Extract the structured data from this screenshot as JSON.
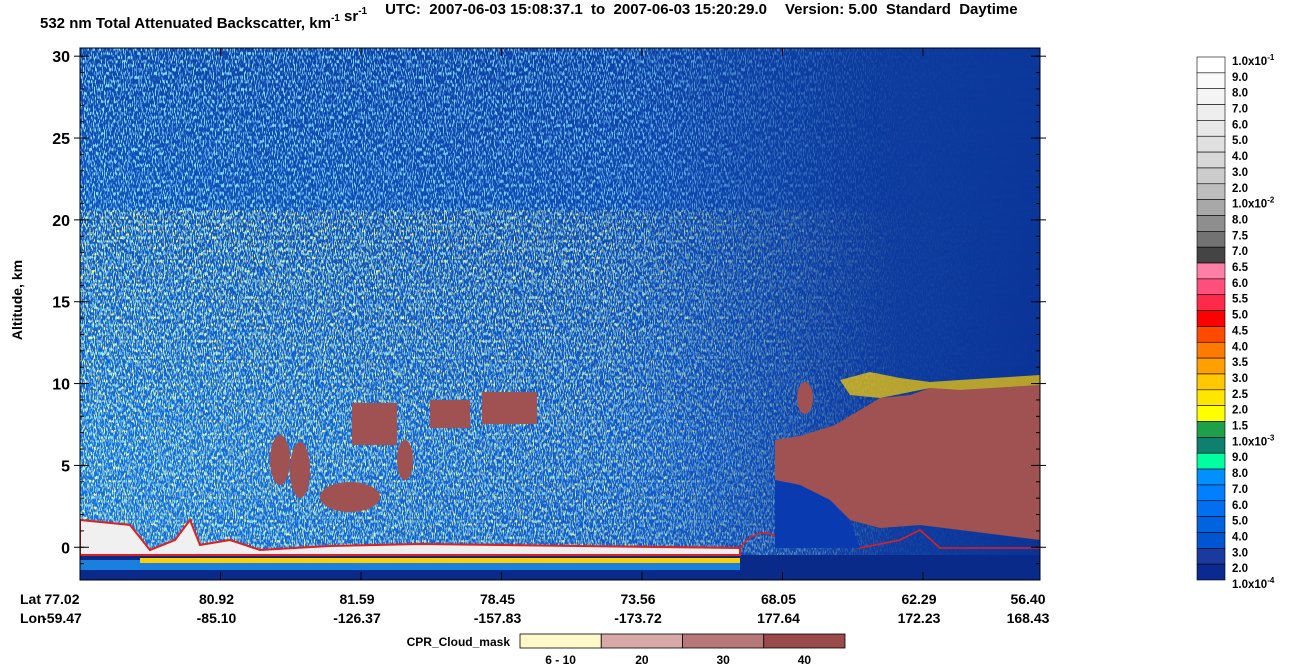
{
  "chart_data": {
    "type": "curtain",
    "title_parts": [
      {
        "text": "532 nm Total Attenuated Backscatter, km"
      },
      {
        "sup": "-1"
      },
      {
        "text": " sr"
      },
      {
        "sup": "-1"
      }
    ],
    "subtitle": "UTC:  2007-06-03 15:08:37.1  to  2007-06-03 15:20:29.0",
    "version": "Version: 5.00  Standard  Daytime",
    "y_label": "Altitude, km",
    "ylim": [
      -2,
      30.5
    ],
    "yticks": [
      0,
      5,
      10,
      15,
      20,
      25,
      30
    ],
    "x_row_labels": [
      "Lat",
      "Lon"
    ],
    "lat": [
      "77.02",
      "80.92",
      "81.59",
      "78.45",
      "73.56",
      "68.05",
      "62.29",
      "56.40"
    ],
    "lon": [
      "-59.47",
      "-85.10",
      "-126.37",
      "-157.83",
      "-173.72",
      "177.64",
      "172.23",
      "168.43"
    ],
    "colorbar": {
      "labels": [
        {
          "text": "1.0x10",
          "sup": "-1"
        },
        {
          "text": "9.0"
        },
        {
          "text": "8.0"
        },
        {
          "text": "7.0"
        },
        {
          "text": "6.0"
        },
        {
          "text": "5.0"
        },
        {
          "text": "4.0"
        },
        {
          "text": "3.0"
        },
        {
          "text": "2.0"
        },
        {
          "text": "1.0x10",
          "sup": "-2"
        },
        {
          "text": "8.0"
        },
        {
          "text": "7.5"
        },
        {
          "text": "7.0"
        },
        {
          "text": "6.5"
        },
        {
          "text": "6.0"
        },
        {
          "text": "5.5"
        },
        {
          "text": "5.0"
        },
        {
          "text": "4.5"
        },
        {
          "text": "4.0"
        },
        {
          "text": "3.5"
        },
        {
          "text": "3.0"
        },
        {
          "text": "2.5"
        },
        {
          "text": "2.0"
        },
        {
          "text": "1.5"
        },
        {
          "text": "1.0x10",
          "sup": "-3"
        },
        {
          "text": "9.0"
        },
        {
          "text": "8.0"
        },
        {
          "text": "7.0"
        },
        {
          "text": "6.0"
        },
        {
          "text": "5.0"
        },
        {
          "text": "4.0"
        },
        {
          "text": "3.0"
        },
        {
          "text": "2.0"
        },
        {
          "text": "1.0x10",
          "sup": "-4"
        }
      ],
      "colors": [
        "#ffffff",
        "#fafafa",
        "#f4f4f4",
        "#eeeeee",
        "#e8e8e8",
        "#e0e0e0",
        "#d8d8d8",
        "#cccccc",
        "#bebebe",
        "#a8a8a8",
        "#8e8e8e",
        "#727272",
        "#444444",
        "#ff7fa6",
        "#ff4f7a",
        "#ff2a4a",
        "#ff0000",
        "#ff4a00",
        "#ff7a00",
        "#ffa000",
        "#ffc800",
        "#ffe600",
        "#ffff00",
        "#1ea04a",
        "#0f8070",
        "#00ffa0",
        "#0090ff",
        "#0080ff",
        "#0070f0",
        "#0064e0",
        "#0055d0",
        "#1a3aa0",
        "#0a2a90"
      ]
    },
    "cpr_legend": {
      "title": "CPR_Cloud_mask",
      "labels": [
        "6 - 10",
        "20",
        "30",
        "40"
      ],
      "colors": [
        "#fff8c8",
        "#d9a8a8",
        "#b87878",
        "#9a4a4a"
      ]
    }
  }
}
